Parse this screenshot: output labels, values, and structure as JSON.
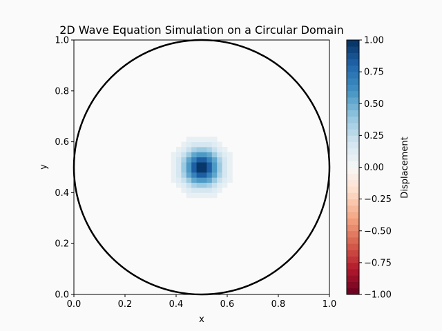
{
  "chart_data": {
    "type": "heatmap",
    "title": "2D Wave Equation Simulation on a Circular Domain",
    "xlabel": "x",
    "ylabel": "y",
    "xlim": [
      0.0,
      1.0
    ],
    "ylim": [
      0.0,
      1.0
    ],
    "xticks": [
      "0.0",
      "0.2",
      "0.4",
      "0.6",
      "0.8",
      "1.0"
    ],
    "yticks": [
      "0.0",
      "0.2",
      "0.4",
      "0.6",
      "0.8",
      "1.0"
    ],
    "grid": false,
    "colormap": "RdBu",
    "boundary": {
      "shape": "circle",
      "center": [
        0.5,
        0.5
      ],
      "radius": 0.5,
      "color": "#000000"
    },
    "field": {
      "description_of_values": "Gaussian pulse of displacement centered in the domain",
      "center": [
        0.5,
        0.5
      ],
      "peak": 1.0,
      "sigma": 0.05,
      "grid_resolution": 50,
      "visible_threshold": 0.05
    },
    "colorbar": {
      "label": "Displacement",
      "range": [
        -1.0,
        1.0
      ],
      "levels": 40,
      "ticks": [
        "1.00",
        "0.75",
        "0.50",
        "0.25",
        "0.00",
        "−0.25",
        "−0.50",
        "−0.75",
        "−1.00"
      ],
      "tick_values": [
        1.0,
        0.75,
        0.5,
        0.25,
        0.0,
        -0.25,
        -0.5,
        -0.75,
        -1.0
      ]
    }
  }
}
